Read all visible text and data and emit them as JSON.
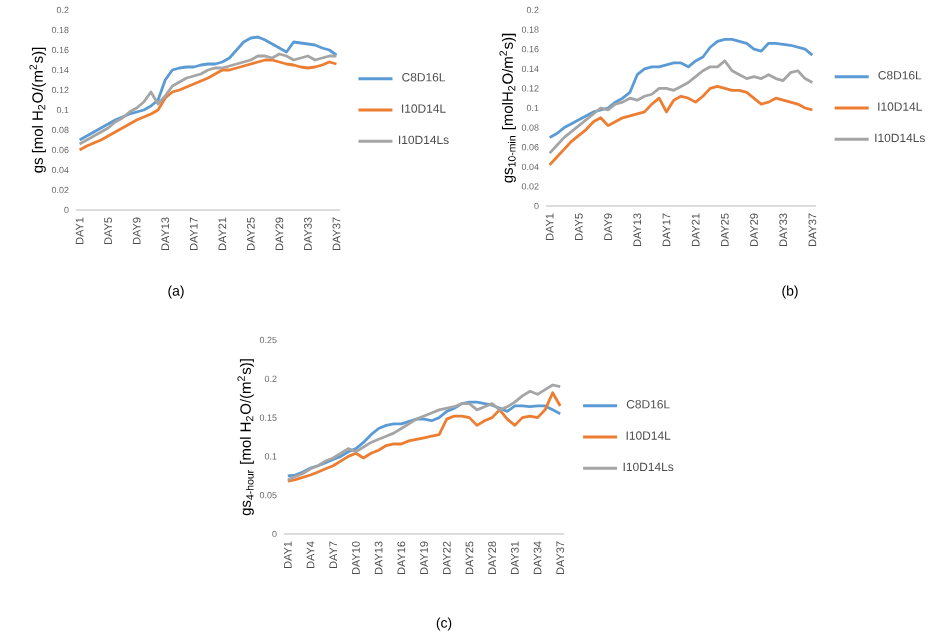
{
  "chart_data": [
    {
      "type": "line",
      "ylabel": "gs [mol H$_{2}$O/(m$^{2}$s)]",
      "annotations": [
        "(a)"
      ],
      "legend": "right",
      "marker": "none",
      "line_style": "solid",
      "categories": [
        "DAY1",
        null,
        null,
        null,
        "DAY5",
        null,
        null,
        null,
        "DAY9",
        null,
        null,
        null,
        "DAY13",
        null,
        null,
        null,
        "DAY17",
        null,
        null,
        null,
        "DAY21",
        null,
        null,
        null,
        "DAY25",
        null,
        null,
        null,
        "DAY29",
        null,
        null,
        null,
        "DAY33",
        null,
        null,
        null,
        "DAY37"
      ],
      "ylim": [
        0,
        0.2
      ],
      "yticks": [
        0,
        0.02,
        0.04,
        0.06,
        0.08,
        0.1,
        0.12,
        0.14,
        0.16,
        0.18,
        0.2
      ],
      "series": [
        {
          "name": "C8D16L",
          "color": "#5b9bd5",
          "values": [
            0.07,
            0.074,
            0.078,
            0.082,
            0.086,
            0.09,
            0.093,
            0.096,
            0.098,
            0.1,
            0.104,
            0.11,
            0.13,
            0.14,
            0.142,
            0.143,
            0.143,
            0.145,
            0.146,
            0.146,
            0.148,
            0.152,
            0.16,
            0.168,
            0.172,
            0.173,
            0.17,
            0.166,
            0.162,
            0.158,
            0.168,
            0.167,
            0.166,
            0.165,
            0.162,
            0.16,
            0.155
          ]
        },
        {
          "name": "I10D14L",
          "color": "#ed7d31",
          "values": [
            0.06,
            0.064,
            0.067,
            0.07,
            0.074,
            0.078,
            0.082,
            0.086,
            0.09,
            0.093,
            0.096,
            0.1,
            0.112,
            0.118,
            0.12,
            0.123,
            0.126,
            0.129,
            0.132,
            0.136,
            0.14,
            0.14,
            0.142,
            0.144,
            0.146,
            0.148,
            0.15,
            0.15,
            0.148,
            0.146,
            0.145,
            0.143,
            0.142,
            0.143,
            0.145,
            0.148,
            0.146
          ]
        },
        {
          "name": "I10D14Ls",
          "color": "#a5a5a5",
          "values": [
            0.066,
            0.07,
            0.074,
            0.078,
            0.082,
            0.088,
            0.092,
            0.098,
            0.102,
            0.108,
            0.118,
            0.106,
            0.114,
            0.124,
            0.128,
            0.132,
            0.134,
            0.136,
            0.14,
            0.142,
            0.142,
            0.144,
            0.146,
            0.148,
            0.15,
            0.154,
            0.154,
            0.152,
            0.156,
            0.154,
            0.15,
            0.152,
            0.154,
            0.15,
            0.152,
            0.154,
            0.154
          ]
        }
      ]
    },
    {
      "type": "line",
      "ylabel": "gs$_{10-min}$ [molH$_{2}$O/m$^{2}$s)]",
      "annotations": [
        "(b)"
      ],
      "legend": "right",
      "marker": "none",
      "line_style": "solid",
      "categories": [
        "DAY1",
        null,
        null,
        null,
        "DAY5",
        null,
        null,
        null,
        "DAY9",
        null,
        null,
        null,
        "DAY13",
        null,
        null,
        null,
        "DAY17",
        null,
        null,
        null,
        "DAY21",
        null,
        null,
        null,
        "DAY25",
        null,
        null,
        null,
        "DAY29",
        null,
        null,
        null,
        "DAY33",
        null,
        null,
        null,
        "DAY37"
      ],
      "ylim": [
        0,
        0.2
      ],
      "yticks": [
        0,
        0.02,
        0.04,
        0.06,
        0.08,
        0.1,
        0.12,
        0.14,
        0.16,
        0.18,
        0.2
      ],
      "series": [
        {
          "name": "C8D16L",
          "color": "#5b9bd5",
          "values": [
            0.07,
            0.074,
            0.08,
            0.084,
            0.088,
            0.092,
            0.096,
            0.098,
            0.1,
            0.106,
            0.11,
            0.116,
            0.134,
            0.14,
            0.142,
            0.142,
            0.144,
            0.146,
            0.146,
            0.142,
            0.148,
            0.152,
            0.162,
            0.168,
            0.17,
            0.17,
            0.168,
            0.166,
            0.16,
            0.158,
            0.166,
            0.166,
            0.165,
            0.164,
            0.162,
            0.16,
            0.154
          ]
        },
        {
          "name": "I10D14L",
          "color": "#ed7d31",
          "values": [
            0.042,
            0.05,
            0.058,
            0.066,
            0.072,
            0.078,
            0.086,
            0.09,
            0.082,
            0.086,
            0.09,
            0.092,
            0.094,
            0.096,
            0.104,
            0.11,
            0.096,
            0.108,
            0.112,
            0.11,
            0.106,
            0.112,
            0.12,
            0.122,
            0.12,
            0.118,
            0.118,
            0.116,
            0.11,
            0.104,
            0.106,
            0.11,
            0.108,
            0.106,
            0.104,
            0.1,
            0.098
          ]
        },
        {
          "name": "I10D14Ls",
          "color": "#a5a5a5",
          "values": [
            0.054,
            0.062,
            0.07,
            0.076,
            0.082,
            0.088,
            0.094,
            0.1,
            0.098,
            0.104,
            0.106,
            0.11,
            0.108,
            0.112,
            0.114,
            0.12,
            0.12,
            0.118,
            0.122,
            0.126,
            0.132,
            0.138,
            0.142,
            0.142,
            0.148,
            0.138,
            0.134,
            0.13,
            0.132,
            0.13,
            0.134,
            0.13,
            0.128,
            0.136,
            0.138,
            0.13,
            0.126
          ]
        }
      ]
    },
    {
      "type": "line",
      "ylabel": "gs$_{4-hour}$ [mol H$_{2}$O/(m$^{2}$s)]",
      "annotations": [
        "(c)"
      ],
      "legend": "right",
      "marker": "none",
      "line_style": "solid",
      "categories": [
        "DAY1",
        null,
        null,
        "DAY4",
        null,
        null,
        "DAY7",
        null,
        null,
        "DAY10",
        null,
        null,
        "DAY13",
        null,
        null,
        "DAY16",
        null,
        null,
        "DAY19",
        null,
        null,
        "DAY22",
        null,
        null,
        "DAY25",
        null,
        null,
        "DAY28",
        null,
        null,
        "DAY31",
        null,
        null,
        "DAY34",
        null,
        null,
        "DAY37"
      ],
      "ylim": [
        0,
        0.25
      ],
      "yticks": [
        0,
        0.05,
        0.1,
        0.15,
        0.2,
        0.25
      ],
      "series": [
        {
          "name": "C8D16L",
          "color": "#5b9bd5",
          "values": [
            0.075,
            0.076,
            0.08,
            0.085,
            0.088,
            0.092,
            0.096,
            0.1,
            0.106,
            0.11,
            0.118,
            0.128,
            0.136,
            0.14,
            0.142,
            0.142,
            0.145,
            0.148,
            0.148,
            0.146,
            0.15,
            0.158,
            0.162,
            0.168,
            0.17,
            0.17,
            0.168,
            0.166,
            0.162,
            0.158,
            0.165,
            0.165,
            0.164,
            0.165,
            0.165,
            0.16,
            0.155
          ]
        },
        {
          "name": "I10D14L",
          "color": "#ed7d31",
          "values": [
            0.068,
            0.07,
            0.073,
            0.076,
            0.08,
            0.084,
            0.088,
            0.094,
            0.1,
            0.104,
            0.098,
            0.104,
            0.108,
            0.114,
            0.116,
            0.116,
            0.12,
            0.122,
            0.124,
            0.126,
            0.128,
            0.148,
            0.152,
            0.152,
            0.15,
            0.14,
            0.146,
            0.15,
            0.16,
            0.148,
            0.14,
            0.15,
            0.152,
            0.15,
            0.16,
            0.182,
            0.165
          ]
        },
        {
          "name": "I10D14Ls",
          "color": "#a5a5a5",
          "values": [
            0.07,
            0.074,
            0.078,
            0.084,
            0.088,
            0.094,
            0.098,
            0.104,
            0.11,
            0.106,
            0.112,
            0.118,
            0.122,
            0.126,
            0.13,
            0.136,
            0.142,
            0.148,
            0.152,
            0.156,
            0.16,
            0.162,
            0.164,
            0.168,
            0.168,
            0.16,
            0.164,
            0.168,
            0.16,
            0.164,
            0.17,
            0.178,
            0.184,
            0.18,
            0.186,
            0.192,
            0.19
          ]
        }
      ]
    }
  ]
}
